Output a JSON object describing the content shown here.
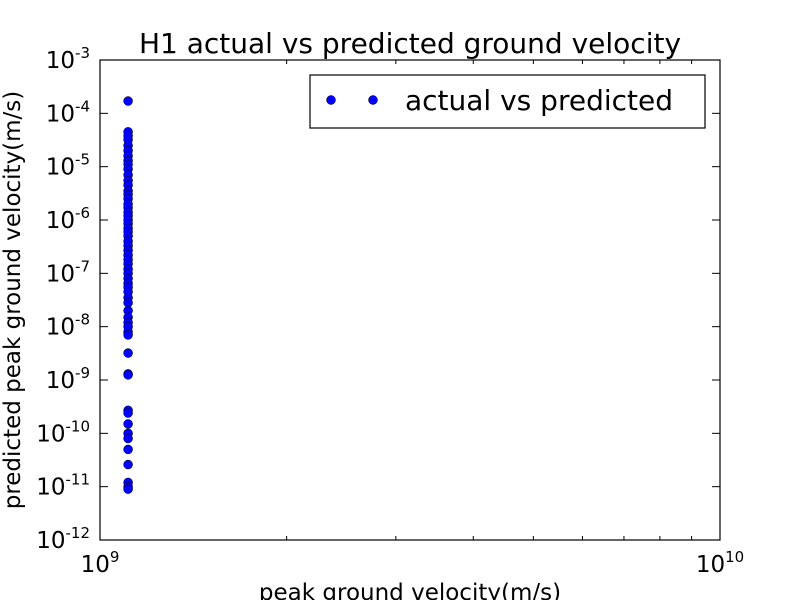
{
  "chart_data": {
    "type": "scatter",
    "title": "H1 actual vs predicted ground velocity",
    "xlabel": "peak ground velocity(m/s)",
    "ylabel": "predicted peak ground velocity(m/s)",
    "xscale": "log",
    "yscale": "log",
    "xlim": [
      1000000000,
      10000000000
    ],
    "ylim": [
      1e-12,
      0.001
    ],
    "x_ticks": [
      {
        "base": "10",
        "exp": "9"
      },
      {
        "base": "10",
        "exp": "10"
      }
    ],
    "y_ticks": [
      {
        "base": "10",
        "exp": "-12"
      },
      {
        "base": "10",
        "exp": "-11"
      },
      {
        "base": "10",
        "exp": "-10"
      },
      {
        "base": "10",
        "exp": "-9"
      },
      {
        "base": "10",
        "exp": "-8"
      },
      {
        "base": "10",
        "exp": "-7"
      },
      {
        "base": "10",
        "exp": "-6"
      },
      {
        "base": "10",
        "exp": "-5"
      },
      {
        "base": "10",
        "exp": "-4"
      },
      {
        "base": "10",
        "exp": "-3"
      }
    ],
    "grid": false,
    "legend_position": "top-right",
    "marker_color": "#0000ff",
    "series": [
      {
        "name": "actual vs predicted",
        "x": 1110000000,
        "y": [
          0.00017,
          4.5e-05,
          3.8e-05,
          3.2e-05,
          2.5e-05,
          2e-05,
          1.6e-05,
          1.3e-05,
          1.1e-05,
          9e-06,
          7e-06,
          5.5e-06,
          4.5e-06,
          3.5e-06,
          3e-06,
          2.5e-06,
          2e-06,
          1.7e-06,
          1.4e-06,
          1.2e-06,
          1e-06,
          8.5e-07,
          7e-07,
          6e-07,
          5e-07,
          4e-07,
          3.3e-07,
          2.7e-07,
          2.2e-07,
          1.8e-07,
          1.5e-07,
          1.2e-07,
          1e-07,
          8e-08,
          6.5e-08,
          5.5e-08,
          4.5e-08,
          3.5e-08,
          2.8e-08,
          2e-08,
          1.5e-08,
          1.2e-08,
          1e-08,
          8e-09,
          7e-09,
          3.2e-09,
          1.3e-09,
          1.25e-09,
          2.7e-10,
          2.4e-10,
          1.5e-10,
          1e-10,
          8e-11,
          5e-11,
          2.6e-11,
          1.2e-11,
          1e-11,
          9e-12
        ]
      }
    ]
  }
}
